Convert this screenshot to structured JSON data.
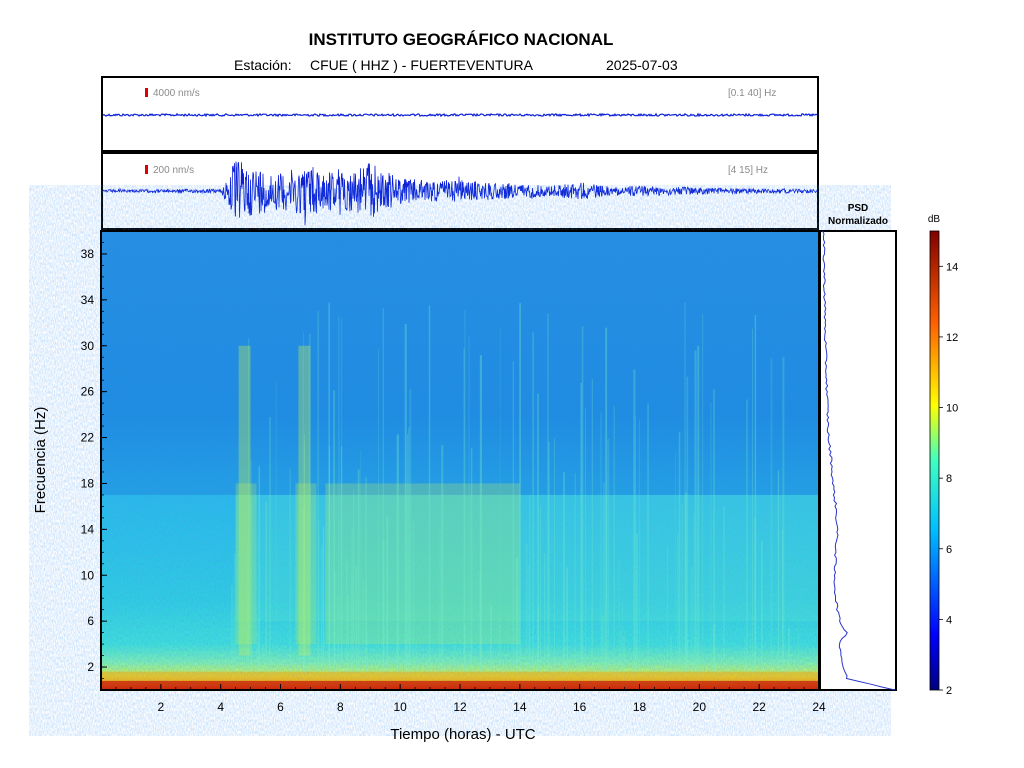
{
  "header": {
    "title": "INSTITUTO GEOGRÁFICO NACIONAL",
    "station_prefix": "Estación:",
    "station": "CFUE ( HHZ ) - FUERTEVENTURA",
    "date": "2025-07-03"
  },
  "colors": {
    "trace": "#0b1ed6",
    "scale_marker": "#e00000",
    "frame": "#000000",
    "psd_line": "#2a35c8",
    "annotation_gray": "#8a8a8a"
  },
  "chart_data": [
    {
      "type": "line",
      "panel": "seismogram-broadband",
      "amplitude_scale_label": "4000 nm/s",
      "band_label": "[0.1 40] Hz",
      "x": [
        0,
        24
      ],
      "description_values": {
        "series": [
          {
            "name": "",
            "values": [
              0,
              0
            ]
          }
        ]
      }
    },
    {
      "type": "line",
      "panel": "seismogram-filtered",
      "amplitude_scale_label": "200 nm/s",
      "band_label": "[4 15] Hz",
      "x": [
        0,
        1,
        2,
        3,
        4,
        4.5,
        5,
        6,
        7,
        8,
        9,
        10,
        11,
        12,
        13,
        14,
        15,
        16,
        17,
        18,
        19,
        20,
        21,
        22,
        23,
        24
      ],
      "envelope": [
        0.04,
        0.04,
        0.05,
        0.05,
        0.05,
        0.9,
        0.7,
        0.5,
        0.75,
        0.5,
        0.8,
        0.35,
        0.3,
        0.3,
        0.25,
        0.2,
        0.15,
        0.25,
        0.12,
        0.15,
        0.12,
        0.1,
        0.08,
        0.07,
        0.06,
        0.05
      ]
    },
    {
      "type": "heatmap",
      "panel": "spectrogram",
      "xlabel": "Tiempo (horas) - UTC",
      "ylabel": "Frecuencia  (Hz)",
      "xlim": [
        0,
        24
      ],
      "ylim": [
        0,
        40
      ],
      "xticks": [
        "2",
        "4",
        "6",
        "8",
        "10",
        "12",
        "14",
        "16",
        "18",
        "20",
        "22",
        "24"
      ],
      "yticks": [
        "2",
        "6",
        "10",
        "14",
        "18",
        "22",
        "26",
        "30",
        "34",
        "38"
      ],
      "high_energy_bands_hz": [
        [
          0,
          2
        ]
      ],
      "active_periods_hours": [
        [
          4.5,
          5.2
        ],
        [
          6.5,
          7.2
        ],
        [
          7.5,
          14
        ]
      ]
    },
    {
      "type": "line",
      "panel": "psd",
      "title_line1": "PSD",
      "title_line2": "Normalizado",
      "y": [
        0,
        1,
        2,
        4,
        5,
        6,
        8,
        10,
        14,
        16,
        18,
        20,
        22,
        26,
        30,
        34,
        38,
        40
      ],
      "values": [
        1.0,
        0.35,
        0.3,
        0.25,
        0.35,
        0.25,
        0.2,
        0.18,
        0.22,
        0.2,
        0.16,
        0.14,
        0.1,
        0.08,
        0.06,
        0.05,
        0.04,
        0.03
      ]
    },
    {
      "type": "colorbar",
      "unit_label": "dB",
      "range": [
        2,
        15
      ],
      "ticks": [
        "2",
        "4",
        "6",
        "8",
        "10",
        "12",
        "14"
      ]
    }
  ]
}
